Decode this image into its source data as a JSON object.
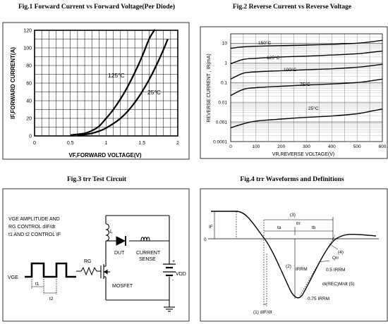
{
  "chart_data": [
    {
      "type": "line",
      "title": "Fig.1  Forward Current vs Forward Voltage(Per Diode)",
      "xlabel": "VF,FORWARD VOLTAGE(V)",
      "ylabel": "IF,FORWARD CURRENT(A)",
      "xlim": [
        0,
        2
      ],
      "ylim": [
        0,
        120
      ],
      "x_ticks": [
        "0",
        "0.5",
        "1",
        "1.5",
        "2"
      ],
      "y_ticks": [
        "0",
        "20",
        "40",
        "60",
        "80",
        "100",
        "120"
      ],
      "grid": true,
      "series": [
        {
          "name": "125°C",
          "x": [
            0.5,
            0.7,
            0.8,
            0.9,
            1.0,
            1.1,
            1.2,
            1.3,
            1.4,
            1.5,
            1.6,
            1.68
          ],
          "y": [
            1,
            3,
            6,
            11,
            20,
            30,
            42,
            56,
            72,
            90,
            110,
            121
          ]
        },
        {
          "name": "25°C",
          "x": [
            0.6,
            0.8,
            0.95,
            1.1,
            1.2,
            1.3,
            1.4,
            1.5,
            1.6,
            1.7,
            1.8,
            1.86
          ],
          "y": [
            0.5,
            3,
            7,
            14,
            20,
            28,
            38,
            50,
            64,
            80,
            98,
            110
          ]
        }
      ]
    },
    {
      "type": "line",
      "title": "Fig.2  Reverse Current vs Reverse Voltage",
      "xlabel": "VR,REVERSE VOLTAGE(V)",
      "ylabel": "REVERSE CURRENT , IR(mA)",
      "xscale": "linear",
      "yscale": "log",
      "xlim": [
        0,
        600
      ],
      "ylim": [
        0.0001,
        30
      ],
      "x_ticks": [
        "0",
        "100",
        "200",
        "300",
        "400",
        "500",
        "600"
      ],
      "y_ticks": [
        "0.0001",
        "0.001",
        "0.01",
        "0.1",
        "1",
        "10"
      ],
      "grid": true,
      "series": [
        {
          "name": "150°C",
          "x": [
            0,
            50,
            100,
            200,
            300,
            400,
            500,
            550,
            600
          ],
          "y": [
            5.5,
            6.5,
            7,
            7.5,
            8,
            8.8,
            10,
            11.5,
            14
          ]
        },
        {
          "name": "125°C",
          "x": [
            0,
            50,
            100,
            200,
            300,
            400,
            500,
            550,
            600
          ],
          "y": [
            0.9,
            1.5,
            1.7,
            2,
            2.2,
            2.5,
            2.9,
            3.4,
            4
          ]
        },
        {
          "name": "100°C",
          "x": [
            0,
            50,
            100,
            200,
            300,
            400,
            500,
            550,
            600
          ],
          "y": [
            0.15,
            0.3,
            0.35,
            0.4,
            0.45,
            0.5,
            0.6,
            0.7,
            0.85
          ]
        },
        {
          "name": "75°C",
          "x": [
            0,
            50,
            100,
            200,
            300,
            400,
            500,
            550,
            600
          ],
          "y": [
            0.022,
            0.045,
            0.055,
            0.065,
            0.075,
            0.085,
            0.1,
            0.12,
            0.15
          ]
        },
        {
          "name": "25°C",
          "x": [
            0,
            50,
            100,
            200,
            300,
            400,
            500,
            550,
            600
          ],
          "y": [
            0.0005,
            0.0008,
            0.0011,
            0.0014,
            0.0017,
            0.002,
            0.0026,
            0.0034,
            0.0045
          ]
        }
      ]
    }
  ],
  "fig3": {
    "title": "Fig.3  trr Test Circuit",
    "note": [
      "VGE AMPLITUDE AND",
      "RG CONTROL dIF/dt",
      "t1 AND t2 CONTROL IF"
    ],
    "vge": "VGE",
    "t1": "t1",
    "t2": "t2",
    "rg": "RG",
    "inductor": "L",
    "dut": "DUT",
    "sense": [
      "CURRENT",
      "SENSE"
    ],
    "mosfet": "MOSFET",
    "vdd": "VDD",
    "plus": "+",
    "minus": "-"
  },
  "fig4": {
    "title": "Fig.4  trr Waveforms and Definitions",
    "if": "IF",
    "zero": "0",
    "label3": "(3)",
    "trr": "trr",
    "ta": "ta",
    "tb": "tb",
    "label4": "(4)",
    "qrr": "Qrr",
    "label2": "(2)",
    "irrm": "IRRM",
    "half": "0.5 IRRM",
    "slope": "di(REC)M/dt (5)",
    "p75": "0.75 IRRM",
    "label1": "(1)  dIF/dt"
  }
}
